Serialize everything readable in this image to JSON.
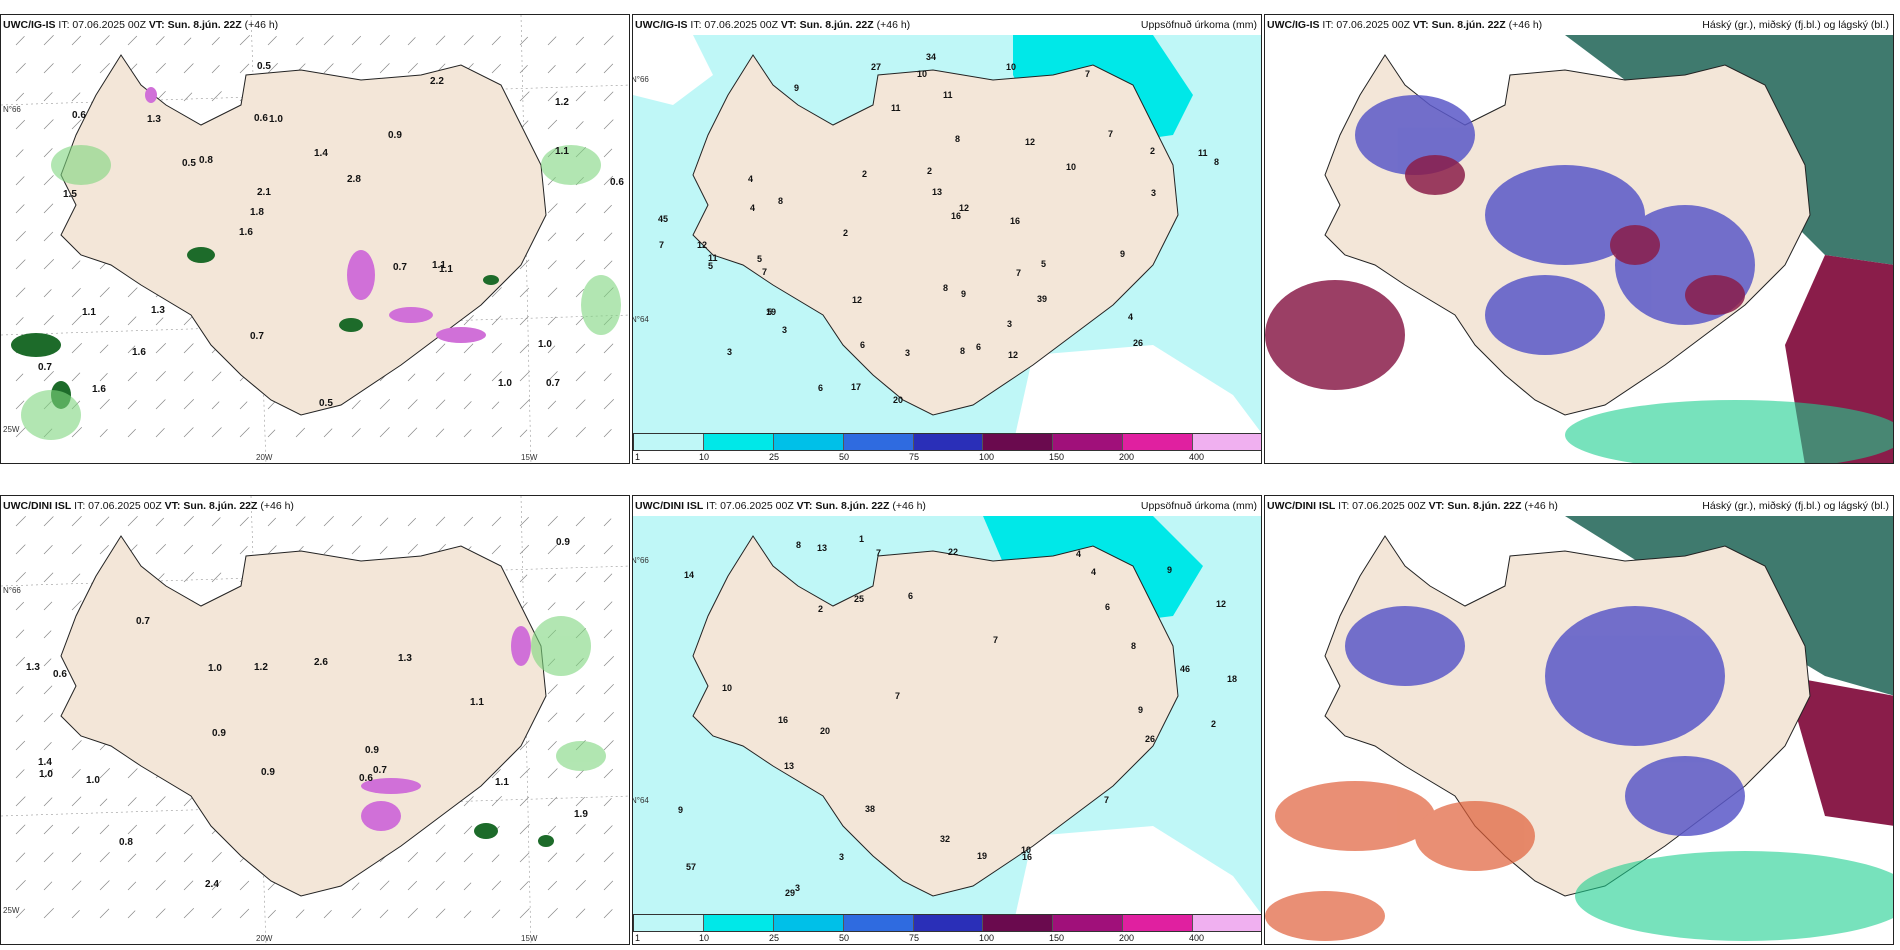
{
  "panels": [
    {
      "id": "top-left",
      "model": "UWC/IG-IS",
      "it": "IT: 07.06.2025 00Z",
      "vt": "VT: Sun. 8.jún. 22Z",
      "lead": "(+46 h)",
      "right_label": "",
      "ticks": {
        "lat": "N°66",
        "lon1": "20W",
        "lon2": "15W",
        "left_bottom": "25W"
      },
      "values": [
        "0.7",
        "1.5",
        "1.2",
        "1.6",
        "0.9",
        "1.6",
        "0.6",
        "1.4",
        "1.1",
        "0.8",
        "0.7",
        "1.6",
        "1.0",
        "2.8",
        "1.1",
        "0.6",
        "0.5",
        "0.6",
        "0.7",
        "1.1",
        "1.8",
        "0.7",
        "2.1",
        "1.3",
        "2.2",
        "1.3",
        "1.0",
        "1.0",
        "1.1",
        "0.5",
        "0.5"
      ]
    },
    {
      "id": "top-middle",
      "model": "UWC/IG-IS",
      "it": "IT: 07.06.2025 00Z",
      "vt": "VT: Sun. 8.jún. 22Z",
      "lead": "(+46 h)",
      "right_label": "Uppsöfnuð úrkoma (mm)",
      "ticks": {
        "lat": "N°66",
        "lon1": "",
        "lon2": "",
        "left_bottom": "N°64"
      },
      "values": [
        "3",
        "7",
        "9",
        "7",
        "9",
        "8",
        "7",
        "5",
        "2",
        "10",
        "12",
        "34",
        "39",
        "16",
        "20",
        "27",
        "26",
        "45",
        "19",
        "17",
        "12",
        "10",
        "11",
        "12",
        "13",
        "6",
        "11",
        "10",
        "8",
        "5",
        "4",
        "3",
        "6",
        "8",
        "4",
        "5",
        "11",
        "16",
        "12",
        "9",
        "8",
        "11",
        "3",
        "5",
        "7",
        "4",
        "7",
        "8",
        "12",
        "3",
        "2",
        "6",
        "2",
        "3",
        "2"
      ]
    },
    {
      "id": "top-right",
      "model": "UWC/IG-IS",
      "it": "IT: 07.06.2025 00Z",
      "vt": "VT: Sun. 8.jún. 22Z",
      "lead": "(+46 h)",
      "right_label": "Háský (gr.), miðský (fj.bl.) og lágský (bl.)",
      "ticks": {
        "lat": "",
        "lon1": "",
        "lon2": "",
        "left_bottom": ""
      },
      "values": []
    },
    {
      "id": "bottom-left",
      "model": "UWC/DINI ISL",
      "it": "IT: 07.06.2025 00Z",
      "vt": "VT: Sun. 8.jún. 22Z",
      "lead": "(+46 h)",
      "right_label": "",
      "ticks": {
        "lat": "N°66",
        "lon1": "20W",
        "lon2": "15W",
        "left_bottom": "25W"
      },
      "values": [
        "0.7",
        "0.6",
        "0.9",
        "0.6",
        "0.9",
        "1.2",
        "1.1",
        "0.9",
        "1.0",
        "2.6",
        "0.8",
        "1.3",
        "1.0",
        "0.9",
        "1.1",
        "1.9",
        "1.3",
        "1.0",
        "2.4",
        "0.7",
        "1.4"
      ]
    },
    {
      "id": "bottom-middle",
      "model": "UWC/DINI ISL",
      "it": "IT: 07.06.2025 00Z",
      "vt": "VT: Sun. 8.jún. 22Z",
      "lead": "(+46 h)",
      "right_label": "Uppsöfnuð úrkoma (mm)",
      "ticks": {
        "lat": "N°66",
        "lon1": "",
        "lon2": "",
        "left_bottom": "N°64"
      },
      "values": [
        "26",
        "4",
        "3",
        "18",
        "29",
        "32",
        "19",
        "13",
        "57",
        "46",
        "16",
        "20",
        "25",
        "38",
        "22",
        "13",
        "14",
        "9",
        "9",
        "16",
        "8",
        "10",
        "7",
        "6",
        "8",
        "4",
        "2",
        "7",
        "12",
        "10",
        "9",
        "7",
        "2",
        "3",
        "1",
        "6",
        "7"
      ]
    },
    {
      "id": "bottom-right",
      "model": "UWC/DINI ISL",
      "it": "IT: 07.06.2025 00Z",
      "vt": "VT: Sun. 8.jún. 22Z",
      "lead": "(+46 h)",
      "right_label": "Háský (gr.), miðský (fj.bl.) og lágský (bl.)",
      "ticks": {
        "lat": "",
        "lon1": "",
        "lon2": "",
        "left_bottom": ""
      },
      "values": []
    }
  ],
  "colorbar": {
    "labels": [
      "1",
      "10",
      "25",
      "50",
      "75",
      "100",
      "150",
      "200",
      "400"
    ],
    "colors": [
      "#bff7f7",
      "#00e8e8",
      "#00c0e8",
      "#2f6be0",
      "#2a2fb8",
      "#6a0a4e",
      "#a0107a",
      "#e020a0",
      "#f0b0f0"
    ]
  },
  "palette": {
    "land": "#f3e6d8",
    "sea_light": "#bff7f7",
    "sea_cyan": "#00e8e8",
    "high_cloud": "#3f7a6e",
    "mid_cloud": "#5a58c8",
    "low_cloud": "#8a1d4a",
    "precip_green": "#7ed67e",
    "precip_dark": "#1d6b2a",
    "precip_pink": "#d070d8"
  }
}
